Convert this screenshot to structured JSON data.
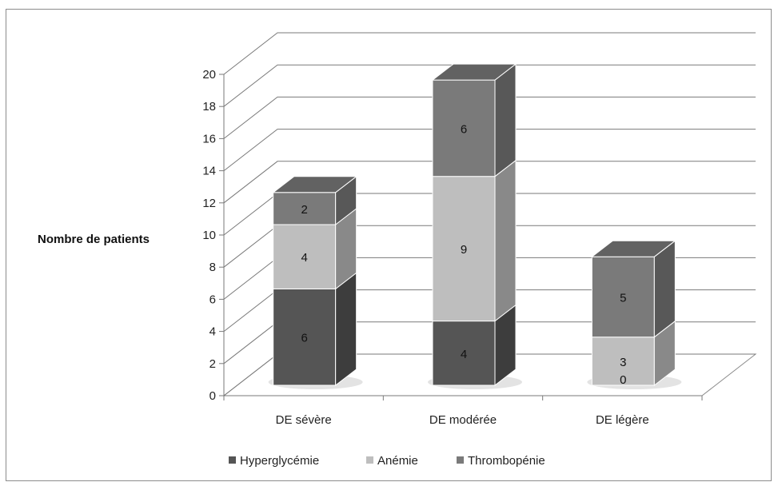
{
  "chart_data": {
    "type": "bar",
    "stacked": true,
    "three_d": true,
    "title": "",
    "xlabel": "",
    "ylabel": "Nombre de patients",
    "ylim": [
      0,
      20
    ],
    "y_ticks": [
      "0",
      "2",
      "4",
      "6",
      "8",
      "10",
      "12",
      "14",
      "16",
      "18",
      "20"
    ],
    "grid": true,
    "legend_position": "bottom",
    "categories": [
      "DE sévère",
      "DE modérée",
      "DE légère"
    ],
    "series": [
      {
        "name": "Hyperglycémie",
        "values": [
          6,
          4,
          0
        ],
        "color": "#555555",
        "labels": [
          "6",
          "4",
          "0"
        ]
      },
      {
        "name": "Anémie",
        "values": [
          4,
          9,
          3
        ],
        "color": "#bebebe",
        "labels": [
          "4",
          "9",
          "3"
        ]
      },
      {
        "name": "Thrombopénie",
        "values": [
          2,
          6,
          5
        ],
        "color": "#7a7a7a",
        "labels": [
          "2",
          "6",
          "5"
        ]
      }
    ]
  }
}
